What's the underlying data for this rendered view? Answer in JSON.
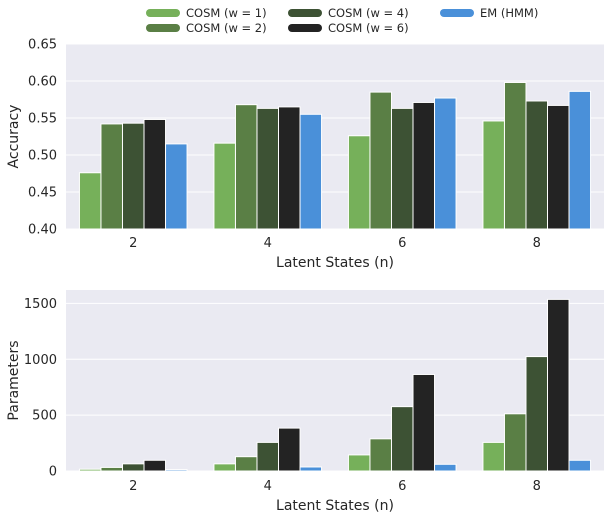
{
  "legend": [
    {
      "label": "COSM (w = 1)",
      "color": "#76B05A"
    },
    {
      "label": "COSM (w = 2)",
      "color": "#5A7F45"
    },
    {
      "label": "COSM (w = 4)",
      "color": "#3D5234"
    },
    {
      "label": "COSM (w = 6)",
      "color": "#232323"
    },
    {
      "label": "EM (HMM)",
      "color": "#4A90D9"
    }
  ],
  "chart_data": [
    {
      "type": "bar",
      "xlabel": "Latent States (n)",
      "ylabel": "Accuracy",
      "categories": [
        "2",
        "4",
        "6",
        "8"
      ],
      "ylim": [
        0.4,
        0.65
      ],
      "yticks": [
        "0.40",
        "0.45",
        "0.50",
        "0.55",
        "0.60",
        "0.65"
      ],
      "grid": true,
      "series": [
        {
          "name": "COSM (w = 1)",
          "values": [
            0.476,
            0.516,
            0.526,
            0.546
          ]
        },
        {
          "name": "COSM (w = 2)",
          "values": [
            0.542,
            0.568,
            0.585,
            0.598
          ]
        },
        {
          "name": "COSM (w = 4)",
          "values": [
            0.543,
            0.563,
            0.563,
            0.573
          ]
        },
        {
          "name": "COSM (w = 6)",
          "values": [
            0.548,
            0.565,
            0.571,
            0.567
          ]
        },
        {
          "name": "EM (HMM)",
          "values": [
            0.515,
            0.555,
            0.577,
            0.586
          ]
        }
      ]
    },
    {
      "type": "bar",
      "xlabel": "Latent States (n)",
      "ylabel": "Parameters",
      "categories": [
        "2",
        "4",
        "6",
        "8"
      ],
      "ylim": [
        0,
        1620
      ],
      "yticks": [
        "0",
        "500",
        "1000",
        "1500"
      ],
      "grid": true,
      "series": [
        {
          "name": "COSM (w = 1)",
          "values": [
            16,
            64,
            144,
            256
          ]
        },
        {
          "name": "COSM (w = 2)",
          "values": [
            32,
            128,
            288,
            512
          ]
        },
        {
          "name": "COSM (w = 4)",
          "values": [
            64,
            256,
            576,
            1024
          ]
        },
        {
          "name": "COSM (w = 6)",
          "values": [
            96,
            384,
            864,
            1536
          ]
        },
        {
          "name": "EM (HMM)",
          "values": [
            12,
            36,
            60,
            96
          ]
        }
      ]
    }
  ]
}
